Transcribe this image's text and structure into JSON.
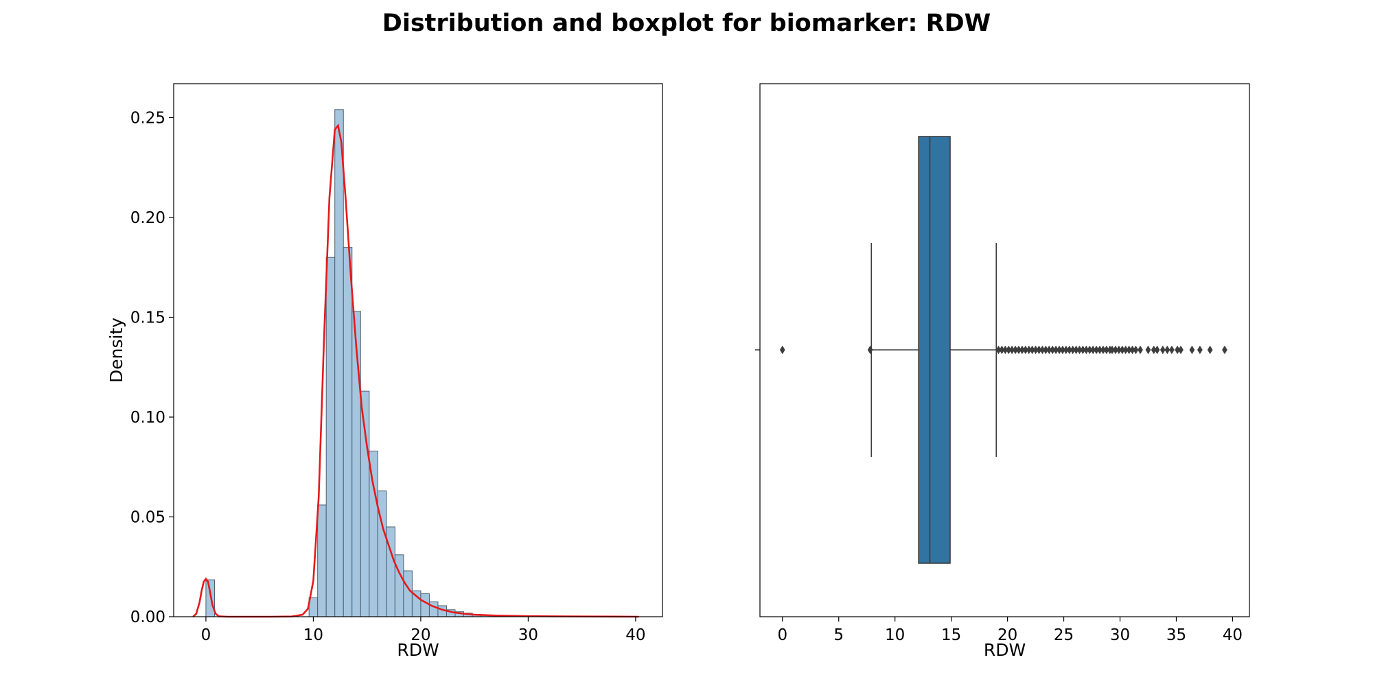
{
  "title": "Distribution and boxplot for biomarker: RDW",
  "chart_data": [
    {
      "type": "histogram",
      "xlabel": "RDW",
      "ylabel": "Density",
      "xlim": [
        -3,
        42.5
      ],
      "ylim": [
        0,
        0.267
      ],
      "xticks": [
        0,
        10,
        20,
        30,
        40
      ],
      "yticks": [
        0.0,
        0.05,
        0.1,
        0.15,
        0.2,
        0.25
      ],
      "ytick_labels": [
        "0.00",
        "0.05",
        "0.10",
        "0.15",
        "0.20",
        "0.25"
      ],
      "bin_width": 0.8,
      "bins": [
        {
          "x": 0.0,
          "value": 0.0185
        },
        {
          "x": 9.6,
          "value": 0.0095
        },
        {
          "x": 10.4,
          "value": 0.056
        },
        {
          "x": 11.2,
          "value": 0.18
        },
        {
          "x": 12.0,
          "value": 0.254
        },
        {
          "x": 12.8,
          "value": 0.185
        },
        {
          "x": 13.6,
          "value": 0.153
        },
        {
          "x": 14.4,
          "value": 0.113
        },
        {
          "x": 15.2,
          "value": 0.083
        },
        {
          "x": 16.0,
          "value": 0.063
        },
        {
          "x": 16.8,
          "value": 0.045
        },
        {
          "x": 17.6,
          "value": 0.031
        },
        {
          "x": 18.4,
          "value": 0.023
        },
        {
          "x": 19.2,
          "value": 0.013
        },
        {
          "x": 20.0,
          "value": 0.0115
        },
        {
          "x": 20.8,
          "value": 0.0075
        },
        {
          "x": 21.6,
          "value": 0.0055
        },
        {
          "x": 22.4,
          "value": 0.0035
        },
        {
          "x": 23.2,
          "value": 0.0025
        },
        {
          "x": 24.0,
          "value": 0.0018
        },
        {
          "x": 24.8,
          "value": 0.0012
        },
        {
          "x": 25.6,
          "value": 0.0008
        },
        {
          "x": 26.4,
          "value": 0.0005
        },
        {
          "x": 27.2,
          "value": 0.0004
        },
        {
          "x": 28.0,
          "value": 0.0003
        }
      ],
      "kde": {
        "x": [
          -1.2,
          -0.9,
          -0.6,
          -0.4,
          -0.2,
          0.0,
          0.2,
          0.4,
          0.6,
          0.9,
          1.2,
          2,
          4,
          6,
          8,
          9.0,
          9.5,
          10.0,
          10.5,
          11.0,
          11.5,
          12.0,
          12.3,
          12.6,
          13.0,
          13.5,
          14.0,
          14.5,
          15.0,
          15.5,
          16.0,
          16.5,
          17.0,
          17.5,
          18.0,
          18.5,
          19.0,
          20.0,
          21.0,
          22.0,
          23.0,
          24.0,
          25.0,
          26.0,
          27.0,
          28.0,
          30.0,
          32.0,
          35.0,
          38.0,
          40.3
        ],
        "y": [
          0.0,
          0.0015,
          0.007,
          0.013,
          0.0175,
          0.019,
          0.0175,
          0.012,
          0.006,
          0.0015,
          0.0002,
          0.0,
          0.0,
          0.0,
          0.0001,
          0.001,
          0.004,
          0.018,
          0.06,
          0.14,
          0.21,
          0.244,
          0.246,
          0.238,
          0.21,
          0.17,
          0.135,
          0.105,
          0.085,
          0.068,
          0.055,
          0.044,
          0.036,
          0.028,
          0.022,
          0.017,
          0.013,
          0.0085,
          0.0055,
          0.0035,
          0.0022,
          0.0015,
          0.001,
          0.0008,
          0.0006,
          0.0005,
          0.0003,
          0.0002,
          0.0001,
          5e-05,
          0.0
        ]
      },
      "colors": {
        "bar_fill": "#a6c6e0",
        "bar_edge": "#4b5f70",
        "kde": "#e41a1c"
      },
      "grid": false
    },
    {
      "type": "boxplot",
      "xlabel": "RDW",
      "xlim": [
        -2,
        41.5
      ],
      "xticks": [
        0,
        5,
        10,
        15,
        20,
        25,
        30,
        35,
        40
      ],
      "box": {
        "q1": 12.1,
        "median": 13.1,
        "q3": 14.9,
        "whisker_low": 7.9,
        "whisker_high": 19.0
      },
      "outliers": [
        0.0,
        7.8,
        19.2,
        19.5,
        19.8,
        20.1,
        20.4,
        20.7,
        21.0,
        21.3,
        21.6,
        21.9,
        22.2,
        22.5,
        22.8,
        23.1,
        23.4,
        23.7,
        24.0,
        24.3,
        24.6,
        24.9,
        25.2,
        25.5,
        25.8,
        26.1,
        26.4,
        26.7,
        27.0,
        27.3,
        27.6,
        27.9,
        28.2,
        28.5,
        28.8,
        29.1,
        29.3,
        29.6,
        29.9,
        30.2,
        30.5,
        30.8,
        31.1,
        31.4,
        31.8,
        32.5,
        33.0,
        33.3,
        33.8,
        34.2,
        34.6,
        35.1,
        35.4,
        36.4,
        37.1,
        38.0,
        39.3
      ],
      "colors": {
        "box_fill": "#3274a1",
        "lines": "#3d3d3d",
        "outlier": "#3d3d3d"
      },
      "grid": false
    }
  ]
}
